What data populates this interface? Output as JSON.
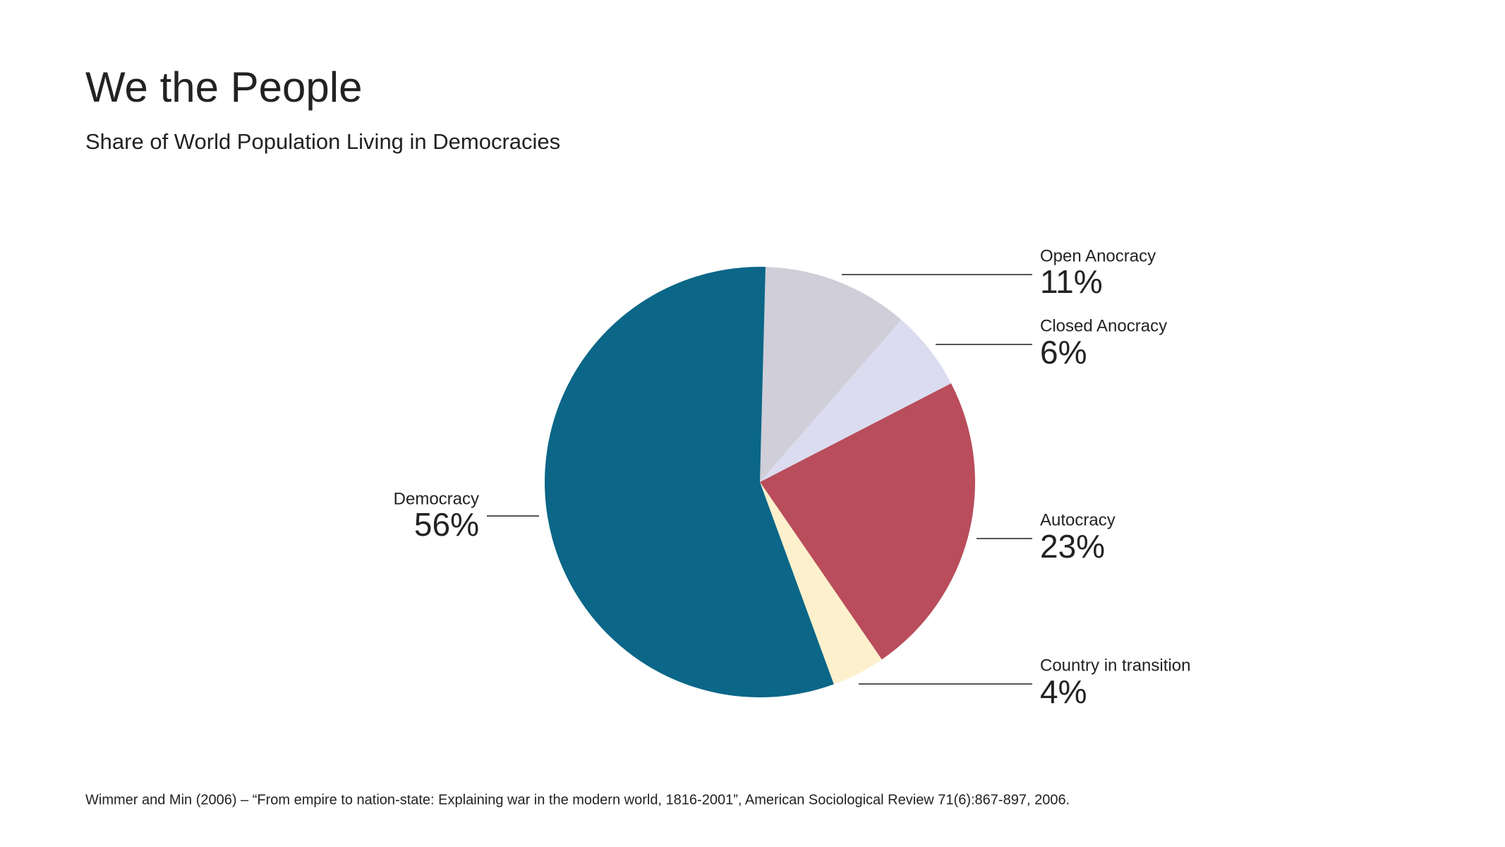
{
  "chart_data": {
    "type": "pie",
    "title": "We the People",
    "subtitle": "Share of World Population Living in Democracies",
    "categories": [
      "Open Anocracy",
      "Closed Anocracy",
      "Autocracy",
      "Country in transition",
      "Democracy"
    ],
    "values": [
      11,
      6,
      23,
      4,
      56
    ],
    "value_labels": [
      "11%",
      "6%",
      "23%",
      "4%",
      "56%"
    ],
    "colors": [
      "#d0ced8",
      "#dcdcf0",
      "#b94d5b",
      "#fdf0cc",
      "#0b6687"
    ],
    "source": "Wimmer and Min (2006) – “From empire to nation-state: Explaining war in the modern world, 1816-2001”, American Sociological Review 71(6):867-897, 2006."
  }
}
